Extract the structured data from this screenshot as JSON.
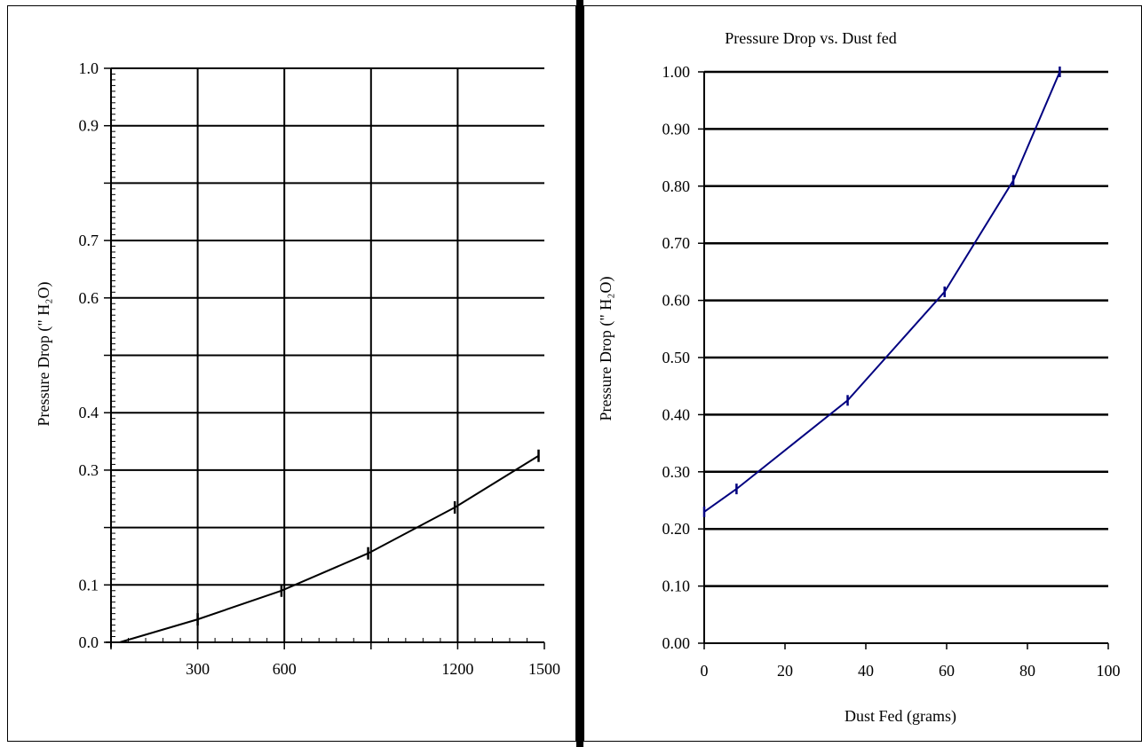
{
  "chart_data": [
    {
      "type": "line",
      "title": "",
      "ylabel": "Pressure Drop (\" H₂O)",
      "xlabel": "",
      "xlim": [
        0,
        1500
      ],
      "ylim": [
        0,
        1.0
      ],
      "x_tick_labels": [
        "300",
        "600",
        "1200",
        "1500"
      ],
      "y_tick_labels": [
        "0.0",
        "0.1",
        "0.3",
        "0.4",
        "0.6",
        "0.7",
        "0.9",
        "1.0"
      ],
      "grid": true,
      "color": "#000000",
      "series": [
        {
          "x": [
            30,
            300,
            590,
            890,
            1190,
            1480
          ],
          "y": [
            0.0,
            0.04,
            0.09,
            0.155,
            0.235,
            0.325
          ]
        }
      ]
    },
    {
      "type": "line",
      "title": "Pressure Drop vs. Dust fed",
      "xlabel": "Dust Fed (grams)",
      "ylabel": "Pressure Drop (\" H₂O)",
      "xlim": [
        0,
        100
      ],
      "ylim": [
        0,
        1.0
      ],
      "x_tick_labels": [
        "0",
        "20",
        "40",
        "60",
        "80",
        "100"
      ],
      "y_tick_labels": [
        "0.00",
        "0.10",
        "0.20",
        "0.30",
        "0.40",
        "0.50",
        "0.60",
        "0.70",
        "0.80",
        "0.90",
        "1.00"
      ],
      "grid": true,
      "color": "#000080",
      "series": [
        {
          "x": [
            0,
            8,
            35.5,
            59.5,
            76.5,
            88
          ],
          "y": [
            0.23,
            0.27,
            0.425,
            0.615,
            0.81,
            1.0
          ]
        }
      ]
    }
  ]
}
